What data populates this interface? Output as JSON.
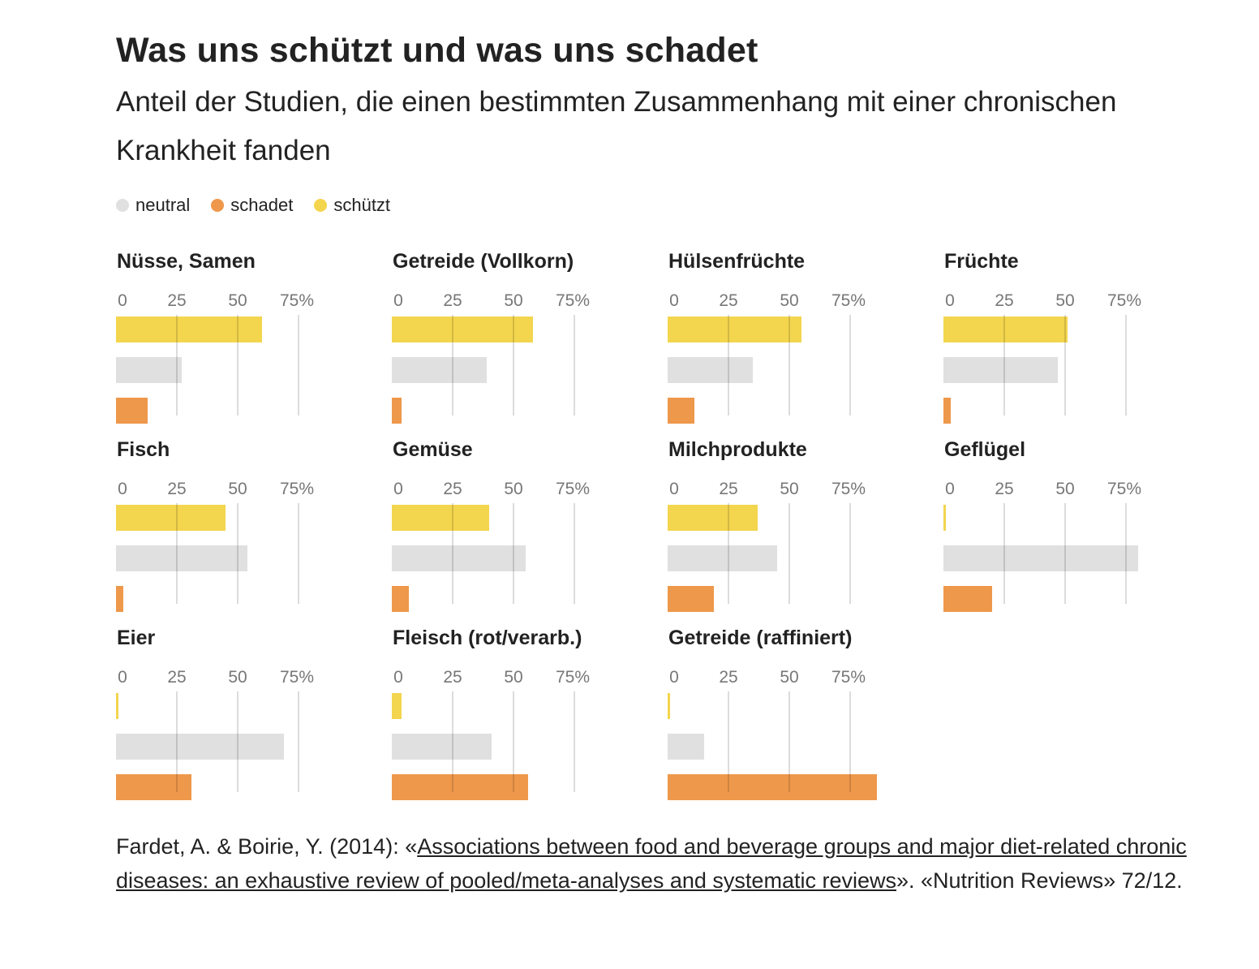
{
  "header": {
    "title": "Was uns schützt und was uns schadet",
    "subtitle": "Anteil der Studien, die einen bestimmten Zusammenhang mit einer chronischen Krankheit fanden"
  },
  "legend": [
    {
      "label": "neutral",
      "color": "#e0e0e0"
    },
    {
      "label": "schadet",
      "color": "#ee984b"
    },
    {
      "label": "schützt",
      "color": "#f3d54e"
    }
  ],
  "chart_data": {
    "type": "bar",
    "orientation": "horizontal",
    "unit": "%",
    "xlim": [
      0,
      75
    ],
    "ticks": [
      "0",
      "25",
      "50",
      "75%"
    ],
    "tick_values": [
      0,
      25,
      50,
      75
    ],
    "series_order": [
      "schützt",
      "neutral",
      "schadet"
    ],
    "colors": {
      "schützt": "#f3d54e",
      "neutral": "#e0e0e0",
      "schadet": "#ee984b"
    },
    "panels": [
      {
        "title": "Nüsse, Samen",
        "values": {
          "schützt": 60,
          "neutral": 27,
          "schadet": 13
        }
      },
      {
        "title": "Getreide (Vollkorn)",
        "values": {
          "schützt": 58,
          "neutral": 39,
          "schadet": 4
        }
      },
      {
        "title": "Hülsenfrüchte",
        "values": {
          "schützt": 55,
          "neutral": 35,
          "schadet": 11
        }
      },
      {
        "title": "Früchte",
        "values": {
          "schützt": 51,
          "neutral": 47,
          "schadet": 3
        }
      },
      {
        "title": "Fisch",
        "values": {
          "schützt": 45,
          "neutral": 54,
          "schadet": 3
        }
      },
      {
        "title": "Gemüse",
        "values": {
          "schützt": 40,
          "neutral": 55,
          "schadet": 7
        }
      },
      {
        "title": "Milchprodukte",
        "values": {
          "schützt": 37,
          "neutral": 45,
          "schadet": 19
        }
      },
      {
        "title": "Geflügel",
        "values": {
          "schützt": 1,
          "neutral": 80,
          "schadet": 20
        }
      },
      {
        "title": "Eier",
        "values": {
          "schützt": 1,
          "neutral": 69,
          "schadet": 31
        }
      },
      {
        "title": "Fleisch (rot/verarb.)",
        "values": {
          "schützt": 4,
          "neutral": 41,
          "schadet": 56
        }
      },
      {
        "title": "Getreide (raffiniert)",
        "values": {
          "schützt": 1,
          "neutral": 15,
          "schadet": 86
        }
      }
    ]
  },
  "source": {
    "prefix": "Fardet, A. & Boirie, Y. (2014): «",
    "link_text": "Associations between food and beverage groups and major diet-related chronic diseases: an exhaustive review of pooled/meta-analyses and systematic reviews",
    "suffix": "». «Nutrition Reviews» 72/12."
  }
}
